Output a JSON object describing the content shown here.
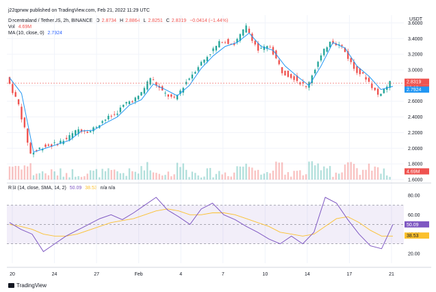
{
  "header": {
    "published": "j22qprww published on TradingView.com, Feb 21, 2022 11:29 UTC",
    "symbol": "Decentraland / TetherUS, 2h, BINANCE",
    "ohlc": {
      "o_label": "O",
      "o": "2.8734",
      "h_label": "H",
      "h": "2.8864",
      "l_label": "L",
      "l": "2.8251",
      "c_label": "C",
      "c": "2.8319",
      "chg": "−0.0414 (−1.44%)"
    },
    "vol_label": "Vol",
    "vol_value": "4.69M",
    "ma_label": "MA (10, close, 0)",
    "ma_value": "2.7924",
    "rsi_label": "RSI (14, close, SMA, 14, 2)",
    "rsi_value": "50.09",
    "rsi_sma_value": "38.53",
    "rsi_na": "n/a  n/a"
  },
  "currency": "USDT",
  "price_badges": {
    "last": "2.8319",
    "countdown": "30:12",
    "ma": "2.7924",
    "vol": "4.69M"
  },
  "rsi_badges": {
    "rsi": "50.09",
    "sma": "38.53"
  },
  "brand": "TradingView",
  "colors": {
    "up": "#26a69a",
    "down": "#ef5350",
    "ma": "#2196f3",
    "rsi": "#7e57c2",
    "rsi_sma": "#fbc02d",
    "band": "#7e57c2"
  },
  "chart_data": [
    {
      "type": "candlestick",
      "title": "Decentraland / TetherUS, 2h, BINANCE",
      "ylabel": "USDT",
      "ylim": [
        1.6,
        3.7
      ],
      "y_ticks": [
        "3.6000",
        "3.4000",
        "3.2000",
        "3.0000",
        "2.8000",
        "2.6000",
        "2.4000",
        "2.2000",
        "2.0000",
        "1.8000",
        "1.6000"
      ],
      "x_ticks": [
        "20",
        "24",
        "27",
        "Feb",
        "4",
        "7",
        "10",
        "14",
        "17",
        "21"
      ],
      "series": [
        {
          "name": "MA (10, close, 0)",
          "points": [
            [
              "20",
              2.9
            ],
            [
              "21",
              2.7
            ],
            [
              "22",
              1.95
            ],
            [
              "23",
              2.0
            ],
            [
              "24",
              2.05
            ],
            [
              "25",
              2.1
            ],
            [
              "26",
              2.22
            ],
            [
              "27",
              2.23
            ],
            [
              "28",
              2.32
            ],
            [
              "29",
              2.4
            ],
            [
              "30",
              2.55
            ],
            [
              "31",
              2.62
            ],
            [
              "Feb",
              2.82
            ],
            [
              "2",
              2.75
            ],
            [
              "3",
              2.67
            ],
            [
              "4",
              2.8
            ],
            [
              "5",
              3.02
            ],
            [
              "6",
              3.18
            ],
            [
              "7",
              3.3
            ],
            [
              "8",
              3.35
            ],
            [
              "9",
              3.47
            ],
            [
              "10",
              3.3
            ],
            [
              "11",
              3.25
            ],
            [
              "12",
              3.05
            ],
            [
              "13",
              2.92
            ],
            [
              "14",
              2.8
            ],
            [
              "15",
              3.05
            ],
            [
              "16",
              3.35
            ],
            [
              "17",
              3.28
            ],
            [
              "18",
              3.05
            ],
            [
              "19",
              2.92
            ],
            [
              "20",
              2.75
            ],
            [
              "21",
              2.79
            ]
          ]
        }
      ],
      "close_series": [
        [
          "20",
          2.91
        ],
        [
          "21",
          2.55
        ],
        [
          "22",
          1.93
        ],
        [
          "23",
          2.02
        ],
        [
          "24",
          2.05
        ],
        [
          "25",
          2.12
        ],
        [
          "26",
          2.24
        ],
        [
          "27",
          2.22
        ],
        [
          "28",
          2.35
        ],
        [
          "29",
          2.43
        ],
        [
          "30",
          2.58
        ],
        [
          "31",
          2.65
        ],
        [
          "Feb",
          2.9
        ],
        [
          "2",
          2.72
        ],
        [
          "3",
          2.62
        ],
        [
          "4",
          2.85
        ],
        [
          "5",
          3.05
        ],
        [
          "6",
          3.22
        ],
        [
          "7",
          3.38
        ],
        [
          "8",
          3.33
        ],
        [
          "9",
          3.55
        ],
        [
          "10",
          3.25
        ],
        [
          "11",
          3.3
        ],
        [
          "12",
          2.98
        ],
        [
          "13",
          2.9
        ],
        [
          "14",
          2.78
        ],
        [
          "15",
          3.1
        ],
        [
          "16",
          3.38
        ],
        [
          "17",
          3.3
        ],
        [
          "18",
          3.02
        ],
        [
          "19",
          2.9
        ],
        [
          "20",
          2.68
        ],
        [
          "21",
          2.83
        ]
      ]
    },
    {
      "type": "line",
      "title": "RSI (14, close, SMA, 14, 2)",
      "ylim": [
        10,
        85
      ],
      "y_ticks": [
        "80.00",
        "60.00",
        "40.00",
        "20.00"
      ],
      "band": [
        30,
        70
      ],
      "series": [
        {
          "name": "RSI",
          "values": [
            52,
            45,
            40,
            22,
            30,
            38,
            44,
            50,
            56,
            60,
            55,
            62,
            70,
            78,
            65,
            58,
            50,
            66,
            72,
            60,
            55,
            48,
            42,
            35,
            30,
            38,
            30,
            42,
            78,
            72,
            55,
            40,
            28,
            25,
            50
          ]
        },
        {
          "name": "SMA",
          "values": [
            50,
            48,
            45,
            40,
            38,
            38,
            40,
            44,
            48,
            52,
            54,
            56,
            60,
            64,
            66,
            64,
            60,
            60,
            62,
            62,
            60,
            56,
            52,
            48,
            42,
            40,
            38,
            40,
            48,
            56,
            58,
            52,
            44,
            38,
            38
          ]
        }
      ]
    }
  ]
}
